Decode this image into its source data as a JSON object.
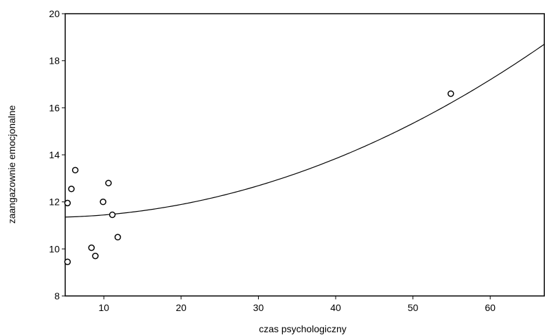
{
  "chart_data": {
    "type": "scatter",
    "title": "",
    "xlabel": "czas psychologiczny",
    "ylabel": "zaangazownie emocjonalne",
    "xlim": [
      5,
      67
    ],
    "ylim": [
      8,
      20
    ],
    "xticks": [
      10,
      20,
      30,
      40,
      50,
      60
    ],
    "yticks": [
      8,
      10,
      12,
      14,
      16,
      18,
      20
    ],
    "grid": false,
    "points": [
      {
        "x": 5.3,
        "y": 9.45
      },
      {
        "x": 5.3,
        "y": 11.95
      },
      {
        "x": 5.8,
        "y": 12.55
      },
      {
        "x": 6.3,
        "y": 13.35
      },
      {
        "x": 8.4,
        "y": 10.05
      },
      {
        "x": 8.9,
        "y": 9.7
      },
      {
        "x": 9.9,
        "y": 12.0
      },
      {
        "x": 10.6,
        "y": 12.8
      },
      {
        "x": 11.1,
        "y": 11.45
      },
      {
        "x": 11.8,
        "y": 10.5
      },
      {
        "x": 54.9,
        "y": 16.6
      }
    ],
    "fit_curve": {
      "type": "quadratic",
      "a": 0.00176,
      "b": -0.0082,
      "c": 11.35
    }
  }
}
